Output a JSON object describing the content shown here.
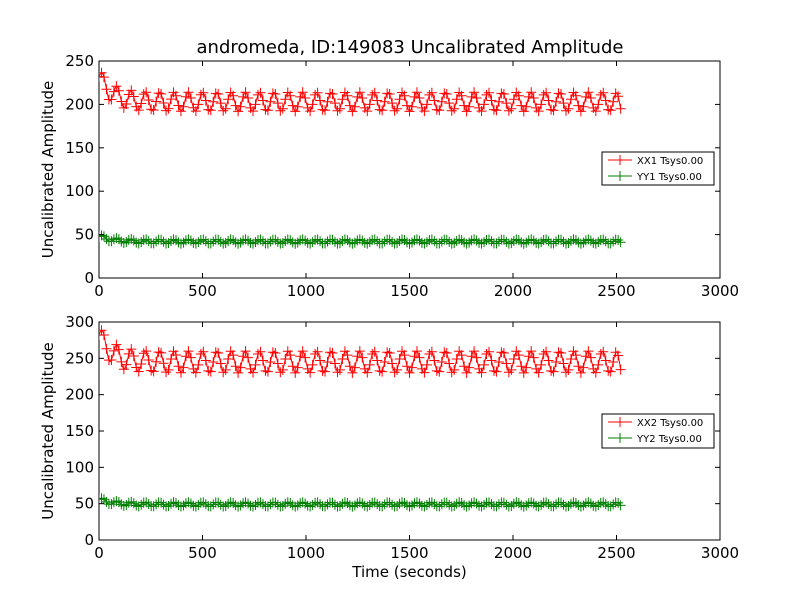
{
  "figure": {
    "title": "andromeda, ID:149083 Uncalibrated Amplitude"
  },
  "chart_data": [
    {
      "type": "line",
      "xlabel": "",
      "ylabel": "Uncalibrated Amplitude",
      "xlim": [
        0,
        3000
      ],
      "ylim": [
        0,
        250
      ],
      "xticks": [
        0,
        500,
        1000,
        1500,
        2000,
        2500,
        3000
      ],
      "yticks": [
        0,
        50,
        100,
        150,
        200,
        250
      ],
      "grid": false,
      "legend_position": "center-right",
      "marker": "+",
      "series": [
        {
          "name": "XX1 Tsys0.00",
          "color": "#ff0000",
          "x_start": 0,
          "x_end": 2520,
          "base": 203,
          "amplitude": 11,
          "period": 69,
          "start_value": 232,
          "end_value": 190
        },
        {
          "name": "YY1 Tsys0.00",
          "color": "#007f00",
          "x_start": 0,
          "x_end": 2520,
          "base": 42,
          "amplitude": 2.5,
          "period": 69,
          "start_value": 48,
          "end_value": 41
        }
      ]
    },
    {
      "type": "line",
      "xlabel": "Time (seconds)",
      "ylabel": "Uncalibrated Amplitude",
      "xlim": [
        0,
        3000
      ],
      "ylim": [
        0,
        300
      ],
      "xticks": [
        0,
        500,
        1000,
        1500,
        2000,
        2500,
        3000
      ],
      "yticks": [
        0,
        50,
        100,
        150,
        200,
        250,
        300
      ],
      "grid": false,
      "legend_position": "center-right",
      "marker": "+",
      "series": [
        {
          "name": "XX2 Tsys0.00",
          "color": "#ff0000",
          "x_start": 0,
          "x_end": 2520,
          "base": 245,
          "amplitude": 15,
          "period": 69,
          "start_value": 282,
          "end_value": 228
        },
        {
          "name": "YY2 Tsys0.00",
          "color": "#007f00",
          "x_start": 0,
          "x_end": 2520,
          "base": 49,
          "amplitude": 3,
          "period": 69,
          "start_value": 56,
          "end_value": 47
        }
      ]
    }
  ]
}
